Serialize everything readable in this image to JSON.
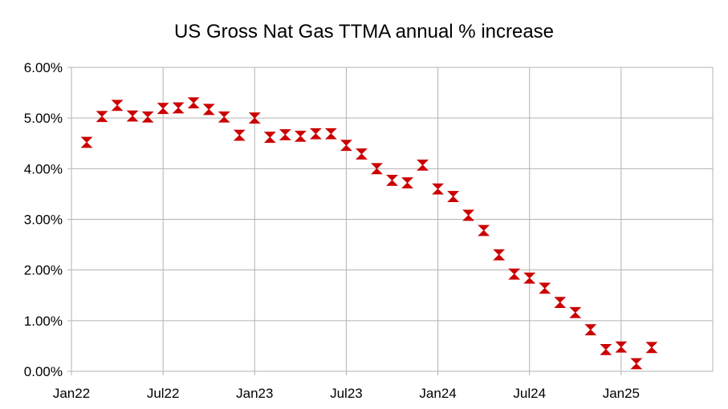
{
  "chart_data": {
    "type": "scatter",
    "title": "US Gross Nat Gas TTMA annual % increase",
    "xlabel": "",
    "ylabel": "",
    "x_ticks": [
      "Jan22",
      "Jul22",
      "Jan23",
      "Jul23",
      "Jan24",
      "Jul24",
      "Jan25"
    ],
    "x_range": [
      "2022-01",
      "2025-07"
    ],
    "ylim": [
      0,
      6
    ],
    "y_ticks": [
      "0.00%",
      "1.00%",
      "2.00%",
      "3.00%",
      "4.00%",
      "5.00%",
      "6.00%"
    ],
    "grid": true,
    "legend": "none",
    "marker": "hourglass",
    "marker_color": "#cc0000",
    "points": [
      {
        "x": "2022-02",
        "y": 4.52
      },
      {
        "x": "2022-03",
        "y": 5.03
      },
      {
        "x": "2022-04",
        "y": 5.25
      },
      {
        "x": "2022-05",
        "y": 5.04
      },
      {
        "x": "2022-06",
        "y": 5.02
      },
      {
        "x": "2022-07",
        "y": 5.19
      },
      {
        "x": "2022-08",
        "y": 5.2
      },
      {
        "x": "2022-09",
        "y": 5.3
      },
      {
        "x": "2022-10",
        "y": 5.17
      },
      {
        "x": "2022-11",
        "y": 5.02
      },
      {
        "x": "2022-12",
        "y": 4.66
      },
      {
        "x": "2023-01",
        "y": 5.0
      },
      {
        "x": "2023-02",
        "y": 4.62
      },
      {
        "x": "2023-03",
        "y": 4.67
      },
      {
        "x": "2023-04",
        "y": 4.64
      },
      {
        "x": "2023-05",
        "y": 4.69
      },
      {
        "x": "2023-06",
        "y": 4.69
      },
      {
        "x": "2023-07",
        "y": 4.46
      },
      {
        "x": "2023-08",
        "y": 4.29
      },
      {
        "x": "2023-09",
        "y": 4.0
      },
      {
        "x": "2023-10",
        "y": 3.77
      },
      {
        "x": "2023-11",
        "y": 3.72
      },
      {
        "x": "2023-12",
        "y": 4.07
      },
      {
        "x": "2024-01",
        "y": 3.6
      },
      {
        "x": "2024-02",
        "y": 3.45
      },
      {
        "x": "2024-03",
        "y": 3.08
      },
      {
        "x": "2024-04",
        "y": 2.78
      },
      {
        "x": "2024-05",
        "y": 2.3
      },
      {
        "x": "2024-06",
        "y": 1.92
      },
      {
        "x": "2024-07",
        "y": 1.84
      },
      {
        "x": "2024-08",
        "y": 1.64
      },
      {
        "x": "2024-09",
        "y": 1.36
      },
      {
        "x": "2024-10",
        "y": 1.16
      },
      {
        "x": "2024-11",
        "y": 0.82
      },
      {
        "x": "2024-12",
        "y": 0.43
      },
      {
        "x": "2025-01",
        "y": 0.48
      },
      {
        "x": "2025-02",
        "y": 0.15
      },
      {
        "x": "2025-03",
        "y": 0.47
      }
    ]
  }
}
